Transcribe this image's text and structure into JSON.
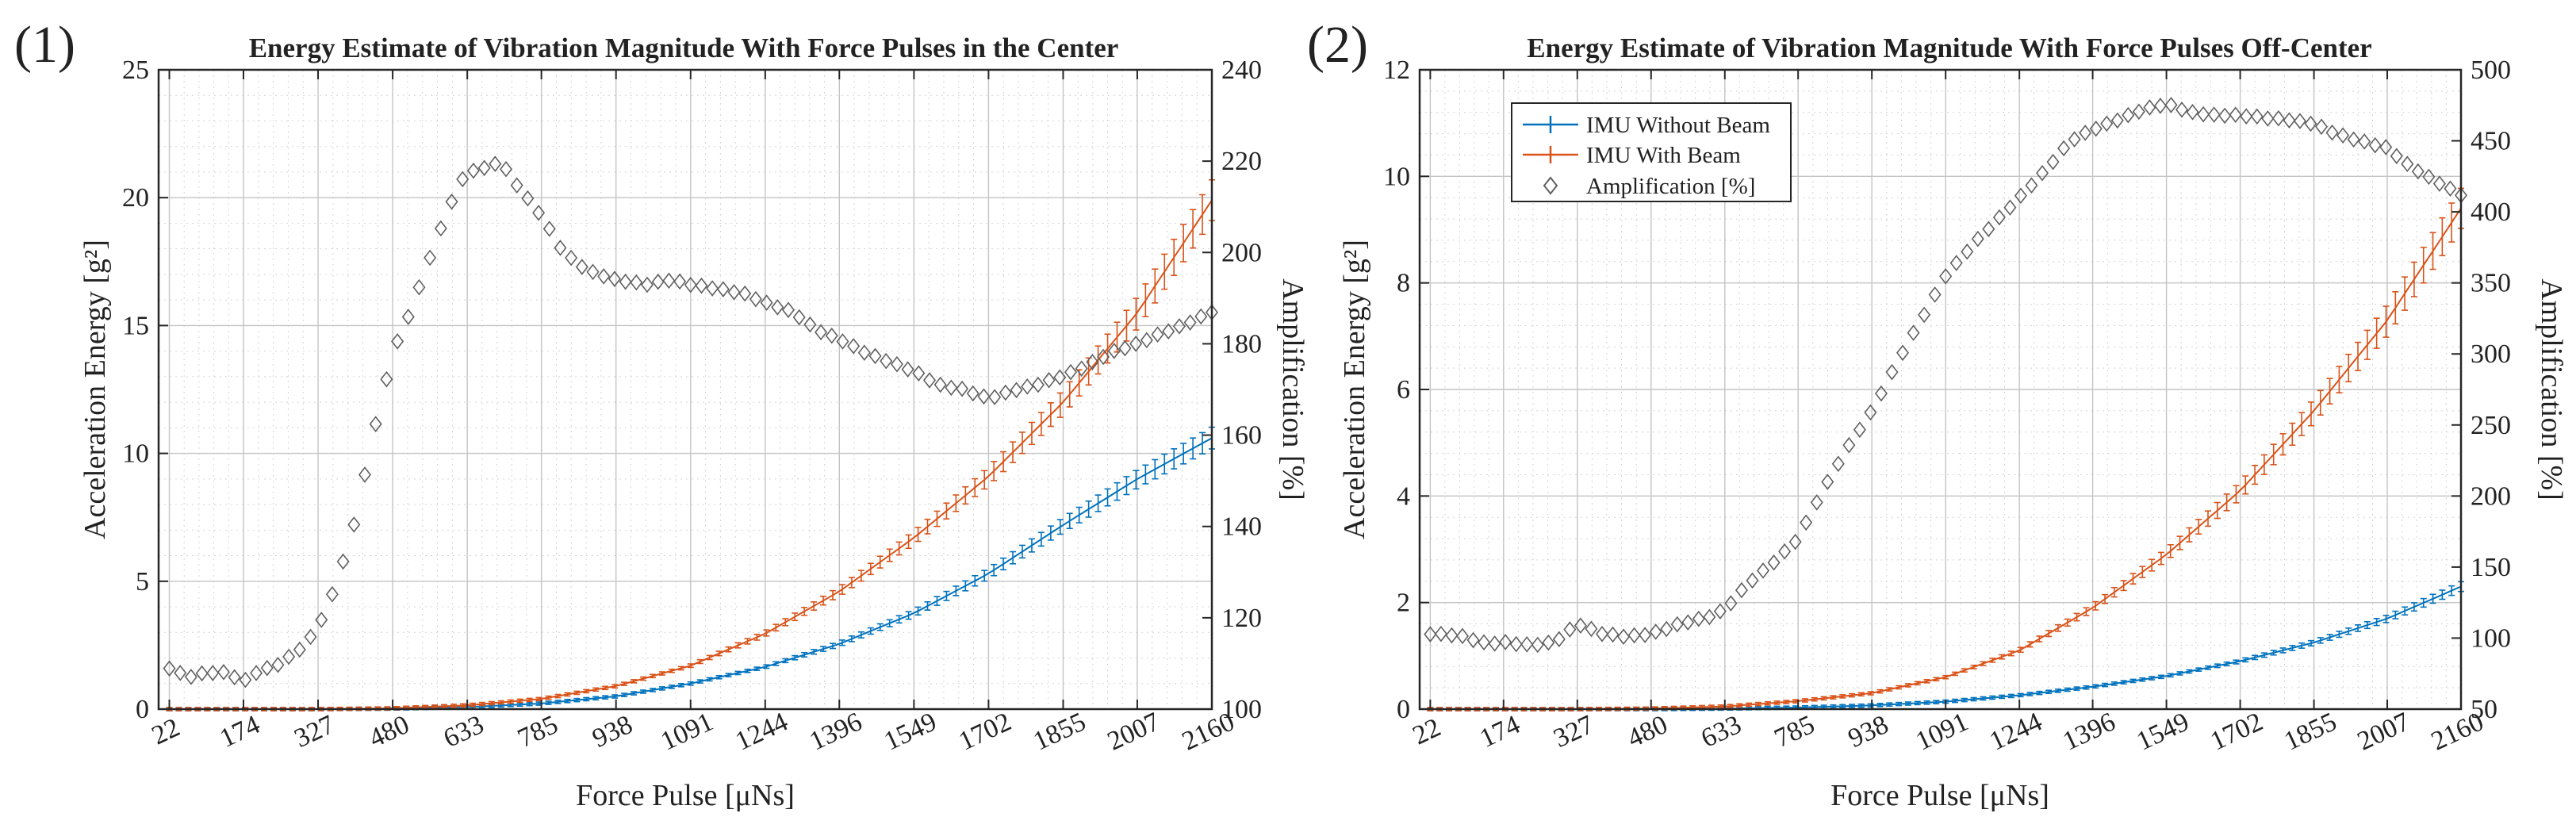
{
  "chart_data": [
    {
      "type": "line",
      "panel_label": "(1)",
      "title": "Energy Estimate of Vibration Magnitude With Force Pulses in the Center",
      "xlabel": "Force Pulse [μNs]",
      "ylabel": "Acceleration Energy [g²]",
      "ylabel_right": "Amplification [%]",
      "xlim": [
        0,
        2160
      ],
      "ylim": [
        0,
        25
      ],
      "ylim_right": [
        100,
        240
      ],
      "x_ticks": [
        "22",
        "174",
        "327",
        "480",
        "633",
        "785",
        "938",
        "1091",
        "1244",
        "1396",
        "1549",
        "1702",
        "1855",
        "2007",
        "2160"
      ],
      "y_ticks": [
        "0",
        "5",
        "10",
        "15",
        "20",
        "25"
      ],
      "y_right_ticks": [
        "100",
        "120",
        "140",
        "160",
        "180",
        "200",
        "220",
        "240"
      ],
      "grid": true,
      "legend": null,
      "x": [
        22,
        174,
        327,
        480,
        633,
        785,
        938,
        1091,
        1244,
        1396,
        1549,
        1702,
        1855,
        2007,
        2160
      ],
      "series": [
        {
          "axis": "left",
          "color": "#0072BD",
          "marker": "errorbar",
          "values": [
            0,
            0,
            0,
            0.02,
            0.08,
            0.22,
            0.5,
            1.0,
            1.65,
            2.55,
            3.75,
            5.3,
            7.2,
            9.0,
            10.6
          ]
        },
        {
          "axis": "left",
          "color": "#D95319",
          "marker": "errorbar",
          "values": [
            0,
            0,
            0,
            0.03,
            0.15,
            0.4,
            0.9,
            1.7,
            2.95,
            4.6,
            6.7,
            9.1,
            12.0,
            15.5,
            19.9
          ]
        },
        {
          "axis": "right",
          "color": "#606060",
          "marker": "diamond",
          "x": [
            22,
            60,
            100,
            140,
            174,
            200,
            250,
            300,
            327,
            360,
            400,
            440,
            480,
            520,
            560,
            600,
            633,
            660,
            700,
            740,
            785,
            830,
            880,
            938,
            1000,
            1050,
            1091,
            1150,
            1200,
            1244,
            1300,
            1350,
            1396,
            1450,
            1500,
            1549,
            1600,
            1650,
            1702,
            1760,
            1800,
            1855,
            1900,
            1950,
            2007,
            2050,
            2100,
            2160
          ],
          "values": [
            109,
            107,
            108,
            108,
            106,
            108,
            110,
            114,
            118,
            126,
            140,
            160,
            178,
            188,
            200,
            211,
            218,
            218,
            220,
            214,
            208,
            200,
            196,
            194,
            193,
            194,
            193,
            192,
            191,
            189,
            187,
            183,
            181,
            178,
            176,
            174,
            171,
            170,
            168,
            170,
            171,
            173,
            175,
            178,
            180,
            182,
            184,
            187
          ]
        }
      ]
    },
    {
      "type": "line",
      "panel_label": "(2)",
      "title": "Energy Estimate of Vibration Magnitude With Force Pulses Off-Center",
      "xlabel": "Force Pulse [μNs]",
      "ylabel": "Acceleration Energy [g²]",
      "ylabel_right": "Amplification [%]",
      "xlim": [
        0,
        2160
      ],
      "ylim": [
        0,
        12
      ],
      "ylim_right": [
        50,
        500
      ],
      "x_ticks": [
        "22",
        "174",
        "327",
        "480",
        "633",
        "785",
        "938",
        "1091",
        "1244",
        "1396",
        "1549",
        "1702",
        "1855",
        "2007",
        "2160"
      ],
      "y_ticks": [
        "0",
        "2",
        "4",
        "6",
        "8",
        "10",
        "12"
      ],
      "y_right_ticks": [
        "50",
        "100",
        "150",
        "200",
        "250",
        "300",
        "350",
        "400",
        "450",
        "500"
      ],
      "grid": true,
      "legend": "top-left",
      "x": [
        22,
        174,
        327,
        480,
        633,
        785,
        938,
        1091,
        1244,
        1396,
        1549,
        1702,
        1855,
        2007,
        2160
      ],
      "series": [
        {
          "name": "IMU Without Beam",
          "axis": "left",
          "color": "#0072BD",
          "marker": "errorbar",
          "values": [
            0,
            0,
            0,
            0,
            0.01,
            0.03,
            0.07,
            0.14,
            0.26,
            0.42,
            0.62,
            0.9,
            1.25,
            1.7,
            2.3
          ]
        },
        {
          "name": "IMU With Beam",
          "axis": "left",
          "color": "#D95319",
          "marker": "errorbar",
          "values": [
            0,
            0,
            0,
            0.01,
            0.05,
            0.15,
            0.3,
            0.6,
            1.1,
            1.9,
            2.9,
            4.1,
            5.6,
            7.3,
            9.4
          ]
        },
        {
          "name": "Amplification [%]",
          "axis": "right",
          "color": "#606060",
          "marker": "diamond",
          "x": [
            22,
            80,
            140,
            174,
            230,
            280,
            327,
            380,
            430,
            480,
            540,
            600,
            633,
            680,
            740,
            785,
            830,
            880,
            938,
            1000,
            1050,
            1091,
            1150,
            1200,
            1244,
            1300,
            1350,
            1396,
            1450,
            1500,
            1549,
            1600,
            1650,
            1702,
            1760,
            1800,
            1855,
            1900,
            1950,
            2007,
            2050,
            2100,
            2160
          ],
          "values": [
            103,
            102,
            96,
            97,
            95,
            97,
            110,
            103,
            101,
            103,
            110,
            115,
            120,
            138,
            155,
            170,
            200,
            230,
            260,
            300,
            330,
            355,
            378,
            395,
            410,
            430,
            450,
            458,
            465,
            472,
            476,
            470,
            468,
            468,
            466,
            465,
            462,
            455,
            450,
            445,
            433,
            423,
            412
          ]
        }
      ]
    }
  ]
}
